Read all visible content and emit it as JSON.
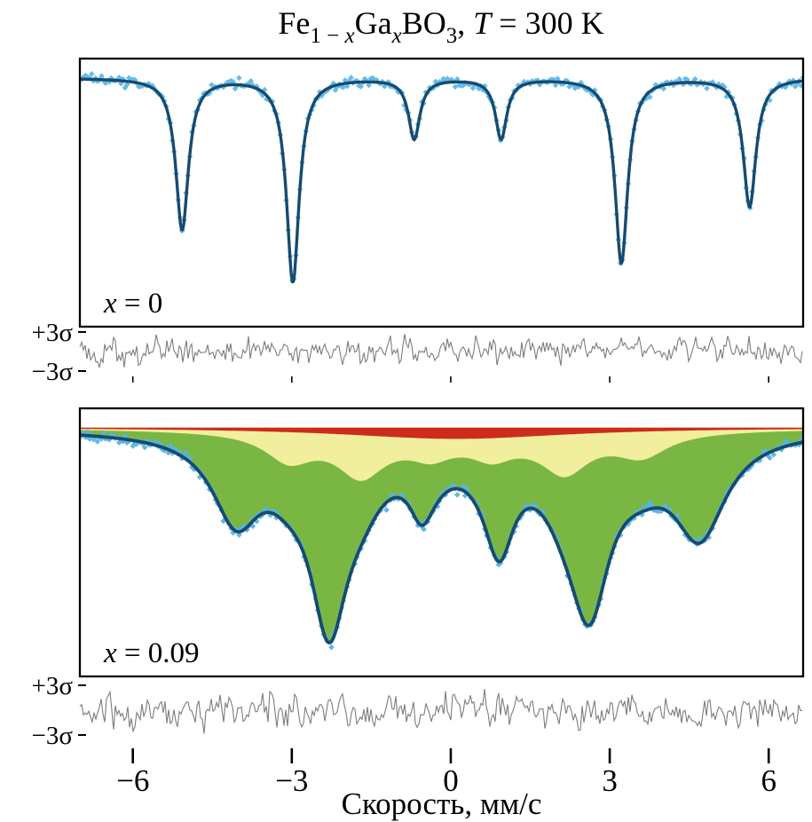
{
  "figure": {
    "background": "#ffffff",
    "title": {
      "plain": "Fe1−xGaxBO3, T = 300 K",
      "segments": [
        {
          "text": "Fe"
        },
        {
          "text": "1 − ",
          "sub": true
        },
        {
          "text": "x",
          "sub": true,
          "italic": true
        },
        {
          "text": "Ga"
        },
        {
          "text": "x",
          "sub": true,
          "italic": true
        },
        {
          "text": "BO"
        },
        {
          "text": "3",
          "sub": true
        },
        {
          "text": ", "
        },
        {
          "text": "T",
          "italic": true
        },
        {
          "text": " = 300 K"
        }
      ]
    },
    "x_axis": {
      "label": "Скорость, мм/с",
      "range": [
        -7.0,
        6.65
      ],
      "ticks": [
        {
          "value": -6,
          "label": "−6"
        },
        {
          "value": -3,
          "label": "−3"
        },
        {
          "value": 0,
          "label": "0"
        },
        {
          "value": 3,
          "label": "3"
        },
        {
          "value": 6,
          "label": "6"
        }
      ]
    }
  },
  "chart_data": [
    {
      "type": "line",
      "title": "Mossbauer spectrum, x = 0",
      "label_plain": "x = 0",
      "label_segments": [
        {
          "text": "x",
          "italic": true
        },
        {
          "text": " = 0"
        }
      ],
      "x_range": [
        -7.0,
        6.65
      ],
      "ylabel": "",
      "grid": false,
      "baseline_offset": 0.072,
      "series": [
        {
          "name": "experimental-data",
          "style": "points",
          "color": "#5db8e8",
          "noise_sigma_frac": 0.0095,
          "seed": 101
        },
        {
          "name": "total-fit",
          "style": "line",
          "color": "#174a70",
          "stroke_width": 3.4,
          "lorentzians": [
            {
              "pos": -5.07,
              "depth": 0.565,
              "hwhm": 0.145
            },
            {
              "pos": -2.98,
              "depth": 0.76,
              "hwhm": 0.145
            },
            {
              "pos": -0.69,
              "depth": 0.225,
              "hwhm": 0.13
            },
            {
              "pos": 0.95,
              "depth": 0.225,
              "hwhm": 0.13
            },
            {
              "pos": 3.22,
              "depth": 0.69,
              "hwhm": 0.145
            },
            {
              "pos": 5.64,
              "depth": 0.48,
              "hwhm": 0.145
            }
          ]
        }
      ],
      "residual": {
        "labels": {
          "top": "+3σ",
          "bottom": "−3σ"
        },
        "color": "#7d7d7d",
        "seed": 202
      }
    },
    {
      "type": "line",
      "title": "Mossbauer spectrum, x = 0.09",
      "label_plain": "x = 0.09",
      "label_segments": [
        {
          "text": "x",
          "italic": true
        },
        {
          "text": " = 0.09"
        }
      ],
      "x_range": [
        -7.0,
        6.65
      ],
      "ylabel": "",
      "grid": false,
      "baseline_offset": 0.072,
      "series": [
        {
          "name": "experimental-data",
          "style": "points",
          "color": "#57b3e6",
          "noise_sigma_frac": 0.0085,
          "seed": 303
        },
        {
          "name": "component-red",
          "style": "area",
          "color": "#cd2b1e",
          "lorentzians": [
            {
              "pos": 0.1,
              "depth": 0.042,
              "hwhm": 2.6
            }
          ]
        },
        {
          "name": "component-yellow",
          "style": "area",
          "color": "#f1ee9e",
          "lorentzians": [
            {
              "pos": -3.05,
              "depth": 0.1,
              "hwhm": 0.55
            },
            {
              "pos": -1.7,
              "depth": 0.145,
              "hwhm": 0.55
            },
            {
              "pos": -0.38,
              "depth": 0.055,
              "hwhm": 0.45
            },
            {
              "pos": 0.78,
              "depth": 0.06,
              "hwhm": 0.45
            },
            {
              "pos": 2.15,
              "depth": 0.135,
              "hwhm": 0.55
            },
            {
              "pos": 3.6,
              "depth": 0.085,
              "hwhm": 0.6
            }
          ]
        },
        {
          "name": "component-green",
          "style": "area",
          "color": "#79b742",
          "lorentzians": [
            {
              "pos": -4.05,
              "depth": 0.3,
              "hwhm": 0.55
            },
            {
              "pos": -2.3,
              "depth": 0.63,
              "hwhm": 0.42
            },
            {
              "pos": -0.55,
              "depth": 0.16,
              "hwhm": 0.28
            },
            {
              "pos": 0.92,
              "depth": 0.3,
              "hwhm": 0.33
            },
            {
              "pos": 2.62,
              "depth": 0.56,
              "hwhm": 0.46
            },
            {
              "pos": 4.7,
              "depth": 0.36,
              "hwhm": 0.6
            }
          ]
        },
        {
          "name": "total-fit",
          "style": "line",
          "color": "#174a70",
          "stroke_width": 3.8
        }
      ],
      "residual": {
        "labels": {
          "top": "+3σ",
          "bottom": "−3σ"
        },
        "color": "#7d7d7d",
        "seed": 404
      }
    }
  ]
}
